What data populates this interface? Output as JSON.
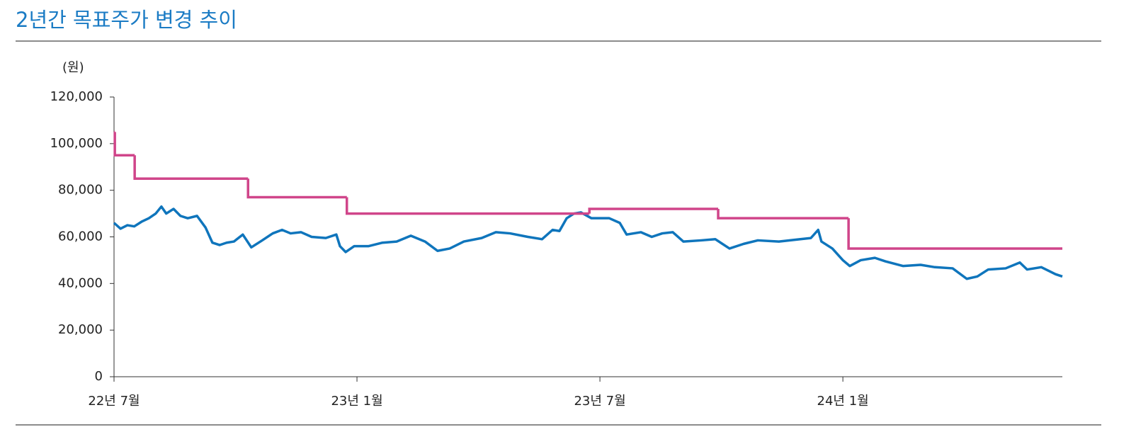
{
  "chart_data": {
    "type": "line",
    "title": "2년간 목표주가 변경 추이",
    "y_label": "(원)",
    "xlim": [
      0,
      23.42
    ],
    "xticks": [
      {
        "value": 0,
        "label": "22년 7월"
      },
      {
        "value": 6,
        "label": "23년 1월"
      },
      {
        "value": 12,
        "label": "23년 7월"
      },
      {
        "value": 18,
        "label": "24년 1월"
      }
    ],
    "ylim": [
      0,
      120000
    ],
    "yticks": [
      0,
      {
        "value": 20000,
        "label": "20,000"
      },
      {
        "value": 40000,
        "label": "40,000"
      },
      {
        "value": 60000,
        "label": "60,000"
      },
      {
        "value": 80000,
        "label": "80,000"
      },
      {
        "value": 100000,
        "label": "100,000"
      },
      {
        "value": 120000,
        "label": "120,000"
      }
    ],
    "grid": false,
    "series": [
      {
        "color": "#0f75bc",
        "x": [
          0,
          0.16,
          0.33,
          0.5,
          0.68,
          0.86,
          1.03,
          1.17,
          1.29,
          1.47,
          1.64,
          1.82,
          2.05,
          2.26,
          2.43,
          2.61,
          2.78,
          2.96,
          3.18,
          3.39,
          3.66,
          3.92,
          4.15,
          4.36,
          4.62,
          4.88,
          5.23,
          5.49,
          5.58,
          5.72,
          5.93,
          6.28,
          6.63,
          6.98,
          7.33,
          7.68,
          7.99,
          8.29,
          8.64,
          9.08,
          9.43,
          9.78,
          10.22,
          10.57,
          10.83,
          11.0,
          11.18,
          11.36,
          11.53,
          11.79,
          12.23,
          12.49,
          12.66,
          13.01,
          13.28,
          13.54,
          13.8,
          14.06,
          14.5,
          14.85,
          15.2,
          15.55,
          15.9,
          16.42,
          16.95,
          17.21,
          17.39,
          17.47,
          17.74,
          18.0,
          18.17,
          18.44,
          18.79,
          19.05,
          19.49,
          19.92,
          20.27,
          20.71,
          21.06,
          21.32,
          21.59,
          22.02,
          22.37,
          22.55,
          22.9,
          23.25,
          23.42
        ],
        "values": [
          66000,
          63500,
          65000,
          64500,
          66500,
          68000,
          70000,
          73000,
          70000,
          72000,
          69000,
          68000,
          69000,
          64000,
          57500,
          56500,
          57500,
          58000,
          61000,
          55500,
          58500,
          61500,
          63000,
          61500,
          62000,
          60000,
          59500,
          61000,
          56000,
          53500,
          56000,
          56000,
          57500,
          58000,
          60500,
          58000,
          54000,
          55000,
          58000,
          59500,
          62000,
          61500,
          60000,
          59000,
          63000,
          62500,
          68000,
          70000,
          70500,
          68000,
          68000,
          66000,
          61000,
          62000,
          60000,
          61500,
          62000,
          58000,
          58500,
          59000,
          55000,
          57000,
          58500,
          58000,
          59000,
          59500,
          63000,
          58000,
          55000,
          50000,
          47500,
          50000,
          51000,
          49500,
          47500,
          48000,
          47000,
          46500,
          42000,
          43000,
          46000,
          46500,
          49000,
          46000,
          47000,
          44000,
          43000
        ]
      },
      {
        "color": "#d0458a",
        "step": true,
        "x": [
          0,
          0.02,
          0.51,
          3.31,
          5.75,
          11.74,
          14.92,
          18.14
        ],
        "values": [
          105000,
          95000,
          85000,
          77000,
          70000,
          72000,
          68000,
          55000
        ]
      }
    ]
  }
}
